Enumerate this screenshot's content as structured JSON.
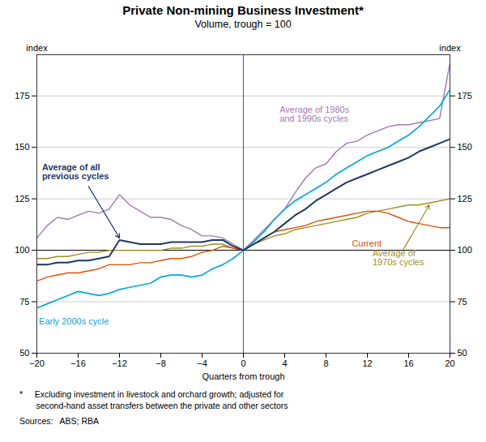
{
  "chart_data": {
    "type": "line",
    "title": "Private Non-mining Business Investment*",
    "subtitle": "Volume, trough = 100",
    "xlabel": "Quarters from trough",
    "ylabel": "index",
    "y2label": "index",
    "notes": [
      "*     Excluding investment in livestock and orchard growth; adjusted for",
      "       second-hand asset transfers between the private and other sectors",
      "Sources:   ABS; RBA"
    ],
    "xlim": [
      -20,
      20
    ],
    "xticks": [
      -20,
      -16,
      -12,
      -8,
      -4,
      0,
      4,
      8,
      12,
      16,
      20
    ],
    "ylim": [
      50,
      195
    ],
    "yticks": [
      50,
      75,
      100,
      125,
      150,
      175
    ],
    "y2lim": [
      50,
      195
    ],
    "y2ticks": [
      50,
      75,
      100,
      125,
      150,
      175
    ],
    "grid": "y",
    "vlines": [
      {
        "value": 0,
        "color": "#4472c4"
      }
    ],
    "hlines": [
      {
        "value": 100,
        "color": "#000000"
      }
    ],
    "x": [
      -20,
      -19,
      -18,
      -17,
      -16,
      -15,
      -14,
      -13,
      -12,
      -11,
      -10,
      -9,
      -8,
      -7,
      -6,
      -5,
      -4,
      -3,
      -2,
      -1,
      0,
      1,
      2,
      3,
      4,
      5,
      6,
      7,
      8,
      9,
      10,
      11,
      12,
      13,
      14,
      15,
      16,
      17,
      18,
      19,
      20
    ],
    "series": [
      {
        "name": "Average of 1980s\nand 1990s cycles",
        "color": "#a07ab0",
        "values": [
          106,
          112,
          116,
          115,
          117,
          119,
          118,
          120,
          127,
          122,
          119,
          116,
          116,
          115,
          112,
          110,
          107,
          107,
          106,
          103,
          100,
          105,
          110,
          115,
          120,
          128,
          135,
          140,
          142,
          148,
          152,
          153,
          156,
          158,
          160,
          161,
          161,
          162,
          163,
          164,
          191
        ]
      },
      {
        "name": "Average of\n1970s cycles",
        "color": "#a09020",
        "values": [
          96,
          96,
          97,
          97,
          98,
          99,
          99,
          100,
          100,
          100,
          100,
          100,
          100,
          101,
          101,
          102,
          102,
          103,
          103,
          101,
          100,
          103,
          105,
          107,
          108,
          110,
          111,
          112,
          113,
          114,
          115,
          116,
          118,
          119,
          120,
          121,
          122,
          122,
          123,
          124,
          125
        ]
      },
      {
        "name": "Current",
        "color": "#e05000",
        "values": [
          85,
          87,
          88,
          89,
          89,
          90,
          91,
          93,
          93,
          93,
          94,
          94,
          95,
          96,
          96,
          97,
          99,
          100,
          102,
          101,
          100,
          103,
          106,
          109,
          110,
          111,
          112,
          114,
          115,
          116,
          117,
          118,
          119,
          119,
          118,
          116,
          114,
          113,
          112,
          111,
          111
        ]
      },
      {
        "name": "Early 2000s cycle",
        "color": "#00aadd",
        "values": [
          72,
          74,
          76,
          78,
          80,
          79,
          78,
          79,
          81,
          82,
          83,
          84,
          87,
          88,
          88,
          87,
          88,
          91,
          93,
          96,
          100,
          104,
          109,
          115,
          120,
          124,
          127,
          130,
          133,
          137,
          140,
          143,
          146,
          148,
          150,
          153,
          156,
          160,
          165,
          170,
          178
        ]
      },
      {
        "name": "Average of all\nprevious cycles",
        "color": "#1f3864",
        "values": [
          93,
          93,
          94,
          94,
          95,
          95,
          96,
          97,
          105,
          104,
          103,
          103,
          103,
          104,
          104,
          104,
          104,
          105,
          105,
          102,
          100,
          103,
          106,
          109,
          113,
          117,
          120,
          124,
          127,
          130,
          133,
          135,
          137,
          139,
          141,
          143,
          145,
          148,
          150,
          152,
          154
        ]
      }
    ]
  }
}
